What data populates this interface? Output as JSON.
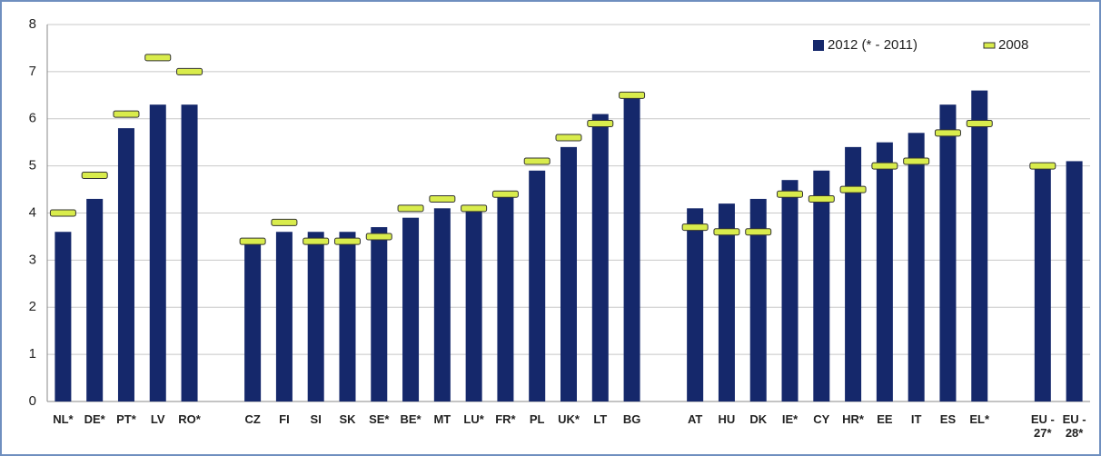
{
  "chart_data": {
    "type": "bar",
    "categories": [
      "NL*",
      "DE*",
      "PT*",
      "LV",
      "RO*",
      null,
      "CZ",
      "FI",
      "SI",
      "SK",
      "SE*",
      "BE*",
      "MT",
      "LU*",
      "FR*",
      "PL",
      "UK*",
      "LT",
      "BG",
      null,
      "AT",
      "HU",
      "DK",
      "IE*",
      "CY",
      "HR*",
      "EE",
      "IT",
      "ES",
      "EL*",
      null,
      "EU - 27*",
      "EU - 28*"
    ],
    "series": [
      {
        "name": "2012 (* - 2011)",
        "color": "#15286b",
        "values": [
          3.6,
          4.3,
          5.8,
          6.3,
          6.3,
          null,
          3.4,
          3.6,
          3.6,
          3.6,
          3.7,
          3.9,
          4.1,
          4.1,
          4.4,
          4.9,
          5.4,
          6.1,
          6.5,
          null,
          4.1,
          4.2,
          4.3,
          4.7,
          4.9,
          5.4,
          5.5,
          5.7,
          6.3,
          6.6,
          null,
          5.0,
          5.1
        ]
      },
      {
        "name": "2008",
        "color": "#d9ec4c",
        "values": [
          4.0,
          4.8,
          6.1,
          7.3,
          7.0,
          null,
          3.4,
          3.8,
          3.4,
          3.4,
          3.5,
          4.1,
          4.3,
          4.1,
          4.4,
          5.1,
          5.6,
          5.9,
          6.5,
          null,
          3.7,
          3.6,
          3.6,
          4.4,
          4.3,
          4.5,
          5.0,
          5.1,
          5.7,
          5.9,
          null,
          5.0,
          null
        ]
      }
    ],
    "ylim": [
      0,
      8
    ],
    "yticks": [
      0,
      1,
      2,
      3,
      4,
      5,
      6,
      7,
      8
    ],
    "grid": true,
    "legend": "upper-right"
  }
}
